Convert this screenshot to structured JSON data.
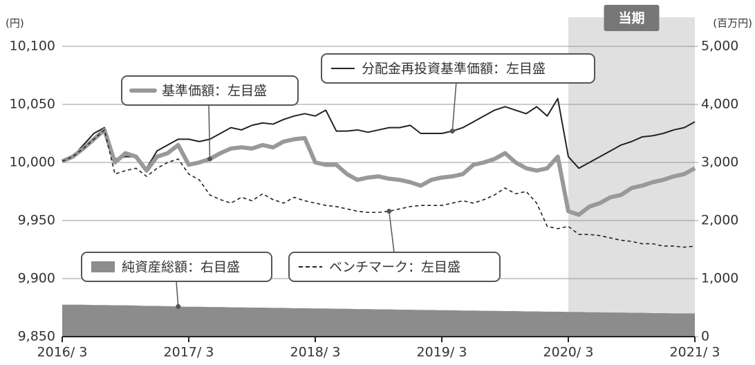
{
  "chart_data": {
    "type": "line",
    "y_unit": "(円)",
    "y2_unit": "(百万円)",
    "categories": [
      "2016/ 3",
      null,
      null,
      null,
      null,
      null,
      null,
      null,
      null,
      null,
      null,
      null,
      "2017/ 3",
      null,
      null,
      null,
      null,
      null,
      null,
      null,
      null,
      null,
      null,
      null,
      "2018/ 3",
      null,
      null,
      null,
      null,
      null,
      null,
      null,
      null,
      null,
      null,
      null,
      "2019/ 3",
      null,
      null,
      null,
      null,
      null,
      null,
      null,
      null,
      null,
      null,
      null,
      "2020/ 3",
      null,
      null,
      null,
      null,
      null,
      null,
      null,
      null,
      null,
      null,
      null,
      "2021/ 3"
    ],
    "ylim": [
      9850,
      10100
    ],
    "yticks": [
      {
        "value": 9850,
        "label": "9,850"
      },
      {
        "value": 9900,
        "label": "9,900"
      },
      {
        "value": 9950,
        "label": "9,950"
      },
      {
        "value": 10000,
        "label": "10,000"
      },
      {
        "value": 10050,
        "label": "10,050"
      },
      {
        "value": 10100,
        "label": "10,100"
      }
    ],
    "y2lim": [
      0,
      5000
    ],
    "y2ticks": [
      0,
      {
        "value": 1000,
        "label": "1,000"
      },
      {
        "value": 2000,
        "label": "2,000"
      },
      {
        "value": 3000,
        "label": "3,000"
      },
      {
        "value": 4000,
        "label": "4,000"
      },
      {
        "value": 5000,
        "label": "5,000"
      }
    ],
    "grid": true,
    "shade": {
      "label": "当期",
      "from": "2020/ 3",
      "to": "2021/ 3"
    },
    "series": [
      {
        "name": "分配金再投資基準価額：左目盛",
        "color": "#222222",
        "style": "thin",
        "values": [
          10001,
          10005,
          10015,
          10025,
          10030,
          10003,
          10005,
          10005,
          9995,
          10010,
          10015,
          10020,
          10020,
          10018,
          10020,
          10025,
          10030,
          10028,
          10032,
          10034,
          10033,
          10037,
          10040,
          10042,
          10040,
          10045,
          10027,
          10027,
          10028,
          10026,
          10028,
          10030,
          10030,
          10032,
          10025,
          10025,
          10025,
          10027,
          10030,
          10035,
          10040,
          10045,
          10048,
          10045,
          10042,
          10048,
          10040,
          10055,
          10005,
          9995,
          10000,
          10005,
          10010,
          10015,
          10018,
          10022,
          10023,
          10025,
          10028,
          10030,
          10035
        ]
      },
      {
        "name": "基準価額：左目盛",
        "color": "#999999",
        "style": "thick",
        "values": [
          10001,
          10005,
          10012,
          10020,
          10028,
          10000,
          10008,
          10005,
          9993,
          10005,
          10008,
          10015,
          9998,
          10000,
          10003,
          10008,
          10012,
          10013,
          10012,
          10015,
          10013,
          10018,
          10020,
          10021,
          10000,
          9998,
          9998,
          9990,
          9985,
          9987,
          9988,
          9986,
          9985,
          9983,
          9980,
          9985,
          9987,
          9988,
          9990,
          9998,
          10000,
          10003,
          10008,
          10000,
          9995,
          9993,
          9995,
          10005,
          9958,
          9955,
          9962,
          9965,
          9970,
          9972,
          9978,
          9980,
          9983,
          9985,
          9988,
          9990,
          9995
        ]
      },
      {
        "name": "ベンチマーク：左目盛",
        "color": "#222222",
        "style": "dashed",
        "values": [
          10001,
          10005,
          10012,
          10020,
          10028,
          9990,
          9993,
          9995,
          9988,
          9995,
          10000,
          10003,
          9990,
          9985,
          9972,
          9968,
          9965,
          9970,
          9967,
          9973,
          9968,
          9965,
          9970,
          9967,
          9965,
          9963,
          9962,
          9960,
          9958,
          9957,
          9957,
          9958,
          9960,
          9962,
          9963,
          9963,
          9963,
          9965,
          9967,
          9965,
          9968,
          9972,
          9978,
          9973,
          9975,
          9965,
          9945,
          9943,
          9945,
          9938,
          9938,
          9937,
          9935,
          9933,
          9932,
          9930,
          9930,
          9928,
          9928,
          9927,
          9928
        ]
      },
      {
        "name": "純資産総額：右目盛",
        "color": "#8c8c8c",
        "style": "area",
        "axis": "y2",
        "values": [
          550,
          550,
          550,
          545,
          545,
          540,
          540,
          535,
          530,
          530,
          525,
          520,
          515,
          515,
          510,
          510,
          505,
          505,
          500,
          500,
          495,
          495,
          490,
          490,
          485,
          485,
          480,
          480,
          475,
          475,
          470,
          470,
          465,
          465,
          460,
          460,
          455,
          455,
          450,
          450,
          445,
          445,
          440,
          440,
          435,
          435,
          430,
          430,
          425,
          425,
          420,
          420,
          415,
          415,
          410,
          410,
          405,
          405,
          400,
          400,
          400
        ]
      }
    ]
  }
}
